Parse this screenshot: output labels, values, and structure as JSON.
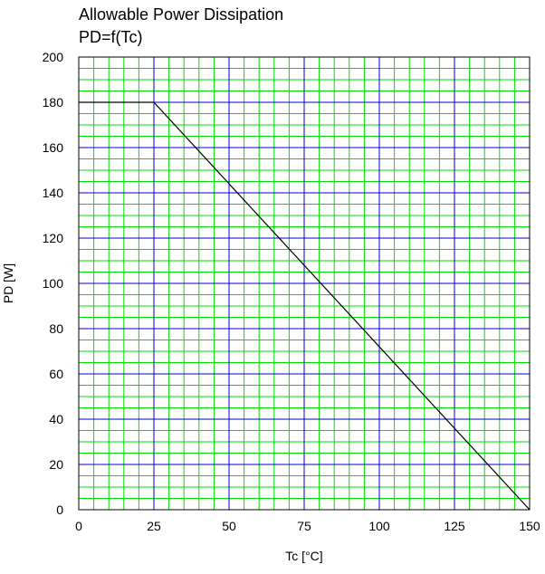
{
  "chart_data": {
    "type": "line",
    "title": "Allowable Power Dissipation",
    "subtitle": "PD=f(Tc)",
    "xlabel": "Tc [°C]",
    "ylabel": "PD [W]",
    "xlim": [
      0,
      150
    ],
    "ylim": [
      0,
      200
    ],
    "x_ticks": [
      0,
      25,
      50,
      75,
      100,
      125,
      150
    ],
    "y_ticks": [
      0,
      20,
      40,
      60,
      80,
      100,
      120,
      140,
      160,
      180,
      200
    ],
    "x_tick_labels": [
      "0",
      "25",
      "50",
      "75",
      "100",
      "125",
      "150"
    ],
    "y_tick_labels": [
      "0",
      "20",
      "40",
      "60",
      "80",
      "100",
      "120",
      "140",
      "160",
      "180",
      "200"
    ],
    "grid": true,
    "minor_grid": true,
    "series": [
      {
        "x": [
          0,
          25,
          150
        ],
        "y": [
          180,
          180,
          0
        ],
        "color": "#000000"
      }
    ],
    "colors": {
      "major_grid": "#0000cc",
      "minor_grid": "#00dd00",
      "line": "#000000"
    }
  }
}
